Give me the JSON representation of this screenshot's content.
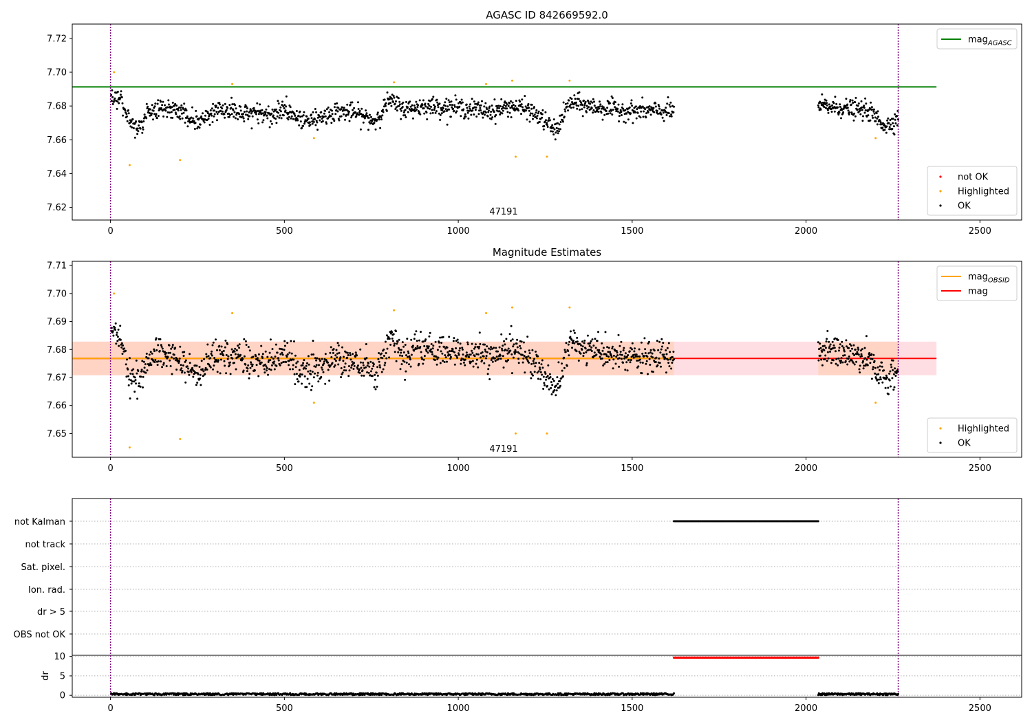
{
  "chart_data": [
    {
      "type": "scatter",
      "title": "AGASC ID 842669592.0",
      "annotation": "47191",
      "xlim": [
        -110,
        2620
      ],
      "ylim": [
        7.6125,
        7.7285
      ],
      "xticks": [
        0,
        500,
        1000,
        1500,
        2000,
        2500
      ],
      "yticks": [
        7.62,
        7.64,
        7.66,
        7.68,
        7.7,
        7.72
      ],
      "ytick_labels": [
        "7.62",
        "7.64",
        "7.66",
        "7.68",
        "7.70",
        "7.72"
      ],
      "grid": false,
      "vlines": [
        0,
        2265
      ],
      "hlines": [
        {
          "name": "mag_AGASC",
          "y": 7.6913,
          "x_range": [
            -110,
            2375
          ],
          "color": "#008000"
        }
      ],
      "ok_segments": [
        {
          "x_start": 2,
          "x_end": 1620,
          "count": 1250
        },
        {
          "x_start": 2035,
          "x_end": 2265,
          "count": 190
        }
      ],
      "ok_trend": [
        [
          0,
          7.687
        ],
        [
          30,
          7.684
        ],
        [
          50,
          7.672
        ],
        [
          80,
          7.667
        ],
        [
          110,
          7.676
        ],
        [
          150,
          7.68
        ],
        [
          200,
          7.676
        ],
        [
          250,
          7.671
        ],
        [
          300,
          7.677
        ],
        [
          350,
          7.678
        ],
        [
          400,
          7.676
        ],
        [
          450,
          7.675
        ],
        [
          500,
          7.678
        ],
        [
          550,
          7.672
        ],
        [
          600,
          7.673
        ],
        [
          650,
          7.677
        ],
        [
          700,
          7.676
        ],
        [
          760,
          7.671
        ],
        [
          800,
          7.683
        ],
        [
          850,
          7.678
        ],
        [
          900,
          7.68
        ],
        [
          1000,
          7.679
        ],
        [
          1100,
          7.677
        ],
        [
          1150,
          7.68
        ],
        [
          1200,
          7.678
        ],
        [
          1250,
          7.671
        ],
        [
          1280,
          7.665
        ],
        [
          1320,
          7.682
        ],
        [
          1400,
          7.679
        ],
        [
          1500,
          7.677
        ],
        [
          1620,
          7.677
        ],
        [
          2035,
          7.68
        ],
        [
          2100,
          7.679
        ],
        [
          2180,
          7.677
        ],
        [
          2230,
          7.668
        ],
        [
          2265,
          7.673
        ]
      ],
      "ok_spread": 0.005,
      "highlighted": [
        [
          10,
          7.7
        ],
        [
          55,
          7.645
        ],
        [
          200,
          7.648
        ],
        [
          350,
          7.693
        ],
        [
          585,
          7.661
        ],
        [
          815,
          7.694
        ],
        [
          1080,
          7.693
        ],
        [
          1155,
          7.695
        ],
        [
          1165,
          7.65
        ],
        [
          1255,
          7.65
        ],
        [
          1320,
          7.695
        ],
        [
          2200,
          7.661
        ]
      ],
      "not_ok": [],
      "legend_upper": {
        "position": "upper right",
        "entries": [
          {
            "label": "mag",
            "sub": "AGASC",
            "color": "#008000"
          }
        ]
      },
      "legend_lower": {
        "position": "lower right",
        "entries": [
          {
            "label": "not OK",
            "color": "#ff0000"
          },
          {
            "label": "Highlighted",
            "color": "#ffa500"
          },
          {
            "label": "OK",
            "color": "#000000"
          }
        ]
      }
    },
    {
      "type": "scatter",
      "title": "Magnitude Estimates",
      "annotation": "47191",
      "xlim": [
        -110,
        2620
      ],
      "ylim": [
        7.6415,
        7.7115
      ],
      "xticks": [
        0,
        500,
        1000,
        1500,
        2000,
        2500
      ],
      "yticks": [
        7.65,
        7.66,
        7.67,
        7.68,
        7.69,
        7.7,
        7.71
      ],
      "ytick_labels": [
        "7.65",
        "7.66",
        "7.67",
        "7.68",
        "7.69",
        "7.70",
        "7.71"
      ],
      "grid": false,
      "vlines": [
        0,
        2265
      ],
      "hlines": [
        {
          "name": "mag",
          "y": 7.6768,
          "x_range": [
            -110,
            2375
          ],
          "color": "#ff0000"
        },
        {
          "name": "mag_OBSID",
          "y": 7.6768,
          "x_range": [
            -110,
            1620
          ],
          "color": "#ffa500"
        }
      ],
      "bands": [
        {
          "name": "mag-band",
          "y0": 7.6708,
          "y1": 7.6828,
          "x_range": [
            -110,
            2375
          ],
          "color": "#ffb6c1"
        },
        {
          "name": "mag_OBSID-band",
          "y0": 7.6708,
          "y1": 7.6828,
          "x_range": [
            -110,
            1620
          ],
          "color": "#ffc8a0"
        },
        {
          "name": "mag_OBSID-band",
          "y0": 7.6708,
          "y1": 7.6828,
          "x_range": [
            2035,
            2265
          ],
          "color": "#ffc8a0"
        }
      ],
      "ok_segments": [
        {
          "x_start": 2,
          "x_end": 1620,
          "count": 1250
        },
        {
          "x_start": 2035,
          "x_end": 2265,
          "count": 190
        }
      ],
      "ok_trend": [
        [
          0,
          7.687
        ],
        [
          30,
          7.684
        ],
        [
          50,
          7.672
        ],
        [
          80,
          7.667
        ],
        [
          110,
          7.676
        ],
        [
          150,
          7.68
        ],
        [
          200,
          7.676
        ],
        [
          250,
          7.671
        ],
        [
          300,
          7.677
        ],
        [
          350,
          7.678
        ],
        [
          400,
          7.676
        ],
        [
          450,
          7.675
        ],
        [
          500,
          7.678
        ],
        [
          550,
          7.672
        ],
        [
          600,
          7.673
        ],
        [
          650,
          7.677
        ],
        [
          700,
          7.676
        ],
        [
          760,
          7.671
        ],
        [
          800,
          7.683
        ],
        [
          850,
          7.678
        ],
        [
          900,
          7.68
        ],
        [
          1000,
          7.679
        ],
        [
          1100,
          7.677
        ],
        [
          1150,
          7.68
        ],
        [
          1200,
          7.678
        ],
        [
          1250,
          7.671
        ],
        [
          1280,
          7.665
        ],
        [
          1320,
          7.682
        ],
        [
          1400,
          7.679
        ],
        [
          1500,
          7.677
        ],
        [
          1620,
          7.677
        ],
        [
          2035,
          7.68
        ],
        [
          2100,
          7.679
        ],
        [
          2180,
          7.677
        ],
        [
          2230,
          7.668
        ],
        [
          2265,
          7.673
        ]
      ],
      "ok_spread": 0.005,
      "highlighted": [
        [
          10,
          7.7
        ],
        [
          55,
          7.645
        ],
        [
          200,
          7.648
        ],
        [
          350,
          7.693
        ],
        [
          585,
          7.661
        ],
        [
          815,
          7.694
        ],
        [
          1080,
          7.693
        ],
        [
          1155,
          7.695
        ],
        [
          1165,
          7.65
        ],
        [
          1255,
          7.65
        ],
        [
          1320,
          7.695
        ],
        [
          2200,
          7.661
        ]
      ],
      "legend_upper": {
        "position": "upper right",
        "entries": [
          {
            "label": "mag",
            "sub": "OBSID",
            "color": "#ffa500"
          },
          {
            "label": "mag",
            "sub": "",
            "color": "#ff0000"
          }
        ]
      },
      "legend_lower": {
        "position": "lower right",
        "entries": [
          {
            "label": "Highlighted",
            "color": "#ffa500"
          },
          {
            "label": "OK",
            "color": "#000000"
          }
        ]
      }
    },
    {
      "type": "scatter",
      "xlim": [
        -110,
        2620
      ],
      "xticks": [
        0,
        500,
        1000,
        1500,
        2000,
        2500
      ],
      "vlines": [
        0,
        2265
      ],
      "flag_rows": [
        "not Kalman",
        "not track",
        "Sat. pixel.",
        "Ion. rad.",
        "dr > 5",
        "OBS not OK"
      ],
      "flag_grid": true,
      "flag_points": [
        {
          "row": "not Kalman",
          "x_start": 1620,
          "x_end": 2035,
          "count": 140,
          "color": "#000000"
        }
      ],
      "dr_ylabel": "dr",
      "dr_ylim": [
        -0.5,
        10.3
      ],
      "dr_yticks": [
        0,
        5,
        10
      ],
      "dr_ok_segments": [
        {
          "x_start": 2,
          "x_end": 1620,
          "count": 900,
          "level": 0.3,
          "spread": 0.25
        },
        {
          "x_start": 2035,
          "x_end": 2265,
          "count": 130,
          "level": 0.3,
          "spread": 0.25
        }
      ],
      "dr_clipped": {
        "x_start": 1620,
        "x_end": 2035,
        "count": 140,
        "y": 9.7,
        "color": "#ff0000"
      }
    }
  ]
}
